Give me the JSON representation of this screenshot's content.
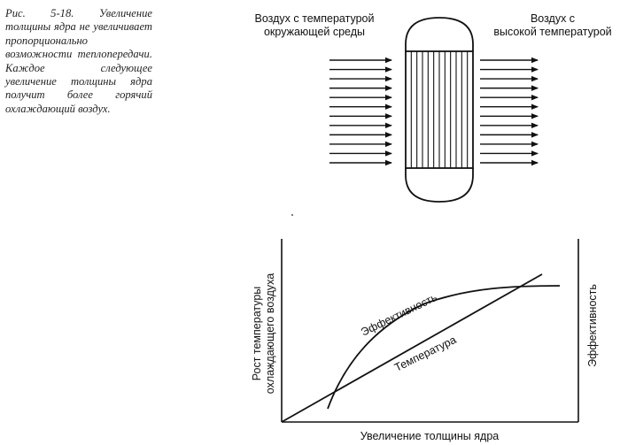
{
  "caption": "Рис. 5-18. Увеличение толщины ядра не увеличивает пропорционально возможности теплопередачи. Каждое следующее увеличение толщины ядра получит более горячий охлаждающий воздух.",
  "core_diagram": {
    "inlet_label_line1": "Воздух с температурой",
    "inlet_label_line2": "окружающей среды",
    "outlet_label_line1": "Воздух с",
    "outlet_label_line2": "высокой температурой",
    "inlet_arrow_count": 12,
    "outlet_arrow_count": 12,
    "core_tube_count": 12
  },
  "graph": {
    "y_label_line1": "Рост температуры",
    "y_label_line2": "охлаждающего воздуха",
    "y_right_label": "Эффективность",
    "x_label": "Увеличение толщины ядра",
    "curve_efficiency_label": "Эффективность",
    "curve_temperature_label": "Температура"
  }
}
